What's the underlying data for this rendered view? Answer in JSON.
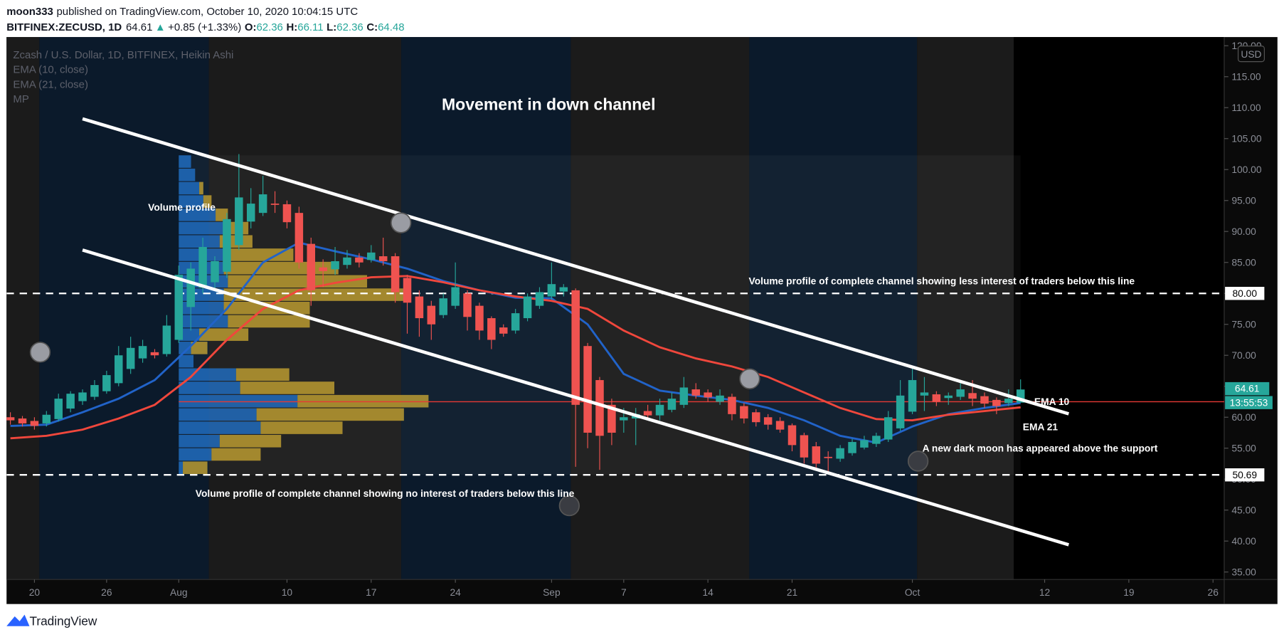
{
  "header": {
    "user": "moon333",
    "published": "published on TradingView.com, October 10, 2020 10:04:15 UTC",
    "symbol": "BITFINEX:ZECUSD, 1D",
    "last": 64.61,
    "arrow": "▲",
    "change": "+0.85 (+1.33%)",
    "ohlc": [
      {
        "label": "O:",
        "value": 62.36
      },
      {
        "label": "H:",
        "value": 66.11
      },
      {
        "label": "L:",
        "value": 62.36
      },
      {
        "label": "C:",
        "value": 64.48
      }
    ]
  },
  "chart_data": {
    "type": "candlestick",
    "title": "Zcash / U.S. Dollar, 1D, BITFINEX, Heikin Ashi",
    "currency": "USD",
    "x": [
      "2020-07-18",
      "2020-07-19",
      "2020-07-20",
      "2020-07-21",
      "2020-07-22",
      "2020-07-23",
      "2020-07-24",
      "2020-07-25",
      "2020-07-26",
      "2020-07-27",
      "2020-07-28",
      "2020-07-29",
      "2020-07-30",
      "2020-07-31",
      "2020-08-01",
      "2020-08-02",
      "2020-08-03",
      "2020-08-04",
      "2020-08-05",
      "2020-08-06",
      "2020-08-07",
      "2020-08-08",
      "2020-08-09",
      "2020-08-10",
      "2020-08-11",
      "2020-08-12",
      "2020-08-13",
      "2020-08-14",
      "2020-08-15",
      "2020-08-16",
      "2020-08-17",
      "2020-08-18",
      "2020-08-19",
      "2020-08-20",
      "2020-08-21",
      "2020-08-22",
      "2020-08-23",
      "2020-08-24",
      "2020-08-25",
      "2020-08-26",
      "2020-08-27",
      "2020-08-28",
      "2020-08-29",
      "2020-08-30",
      "2020-08-31",
      "2020-09-01",
      "2020-09-02",
      "2020-09-03",
      "2020-09-04",
      "2020-09-05",
      "2020-09-06",
      "2020-09-07",
      "2020-09-08",
      "2020-09-09",
      "2020-09-10",
      "2020-09-11",
      "2020-09-12",
      "2020-09-13",
      "2020-09-14",
      "2020-09-15",
      "2020-09-16",
      "2020-09-17",
      "2020-09-18",
      "2020-09-19",
      "2020-09-20",
      "2020-09-21",
      "2020-09-22",
      "2020-09-23",
      "2020-09-24",
      "2020-09-25",
      "2020-09-26",
      "2020-09-27",
      "2020-09-28",
      "2020-09-29",
      "2020-09-30",
      "2020-10-01",
      "2020-10-02",
      "2020-10-03",
      "2020-10-04",
      "2020-10-05",
      "2020-10-06",
      "2020-10-07",
      "2020-10-08",
      "2020-10-09",
      "2020-10-10"
    ],
    "open": [
      60.0,
      59.8,
      59.4,
      59.0,
      59.7,
      61.4,
      62.6,
      63.3,
      64.2,
      65.5,
      67.8,
      69.5,
      70.5,
      70.2,
      72.5,
      77.8,
      80.9,
      81.8,
      83.5,
      87.8,
      91.6,
      93.0,
      94.5,
      94.4,
      93.0,
      88.0,
      84.2,
      83.9,
      84.6,
      85.8,
      85.4,
      86.0,
      86.0,
      82.5,
      79.5,
      78.0,
      76.5,
      78.0,
      80.0,
      78.0,
      76.0,
      74.5,
      74.0,
      76.0,
      78.0,
      79.5,
      80.3,
      80.5,
      71.5,
      66.0,
      62.0,
      59.5,
      59.8,
      61.0,
      60.3,
      61.2,
      62.0,
      64.5,
      64.0,
      62.5,
      63.3,
      61.8,
      60.8,
      60.0,
      59.4,
      58.7,
      57.1,
      55.3,
      53.6,
      53.3,
      54.2,
      55.1,
      55.7,
      56.4,
      58.2,
      60.9,
      63.5,
      63.7,
      63.1,
      63.3,
      63.9,
      63.4,
      62.8,
      62.3,
      62.36
    ],
    "high": [
      60.8,
      60.2,
      60.0,
      61.0,
      63.8,
      64.2,
      64.5,
      66.0,
      67.5,
      71.5,
      73.0,
      72.5,
      71.0,
      76.5,
      84.5,
      85.0,
      89.0,
      86.0,
      93.0,
      102.5,
      97.0,
      99.0,
      96.5,
      95.0,
      94.0,
      89.0,
      85.5,
      87.5,
      87.0,
      86.5,
      87.8,
      89.0,
      86.5,
      83.0,
      80.5,
      78.8,
      80.0,
      85.0,
      80.5,
      78.5,
      76.3,
      75.0,
      77.5,
      80.0,
      81.0,
      85.0,
      81.5,
      80.8,
      72.0,
      66.5,
      63.0,
      61.5,
      61.5,
      62.0,
      63.0,
      64.0,
      66.5,
      65.5,
      64.5,
      64.5,
      63.8,
      62.3,
      61.3,
      60.5,
      60.0,
      59.0,
      57.5,
      56.0,
      54.5,
      55.5,
      56.5,
      57.0,
      57.5,
      61.0,
      66.0,
      68.0,
      66.5,
      64.2,
      64.0,
      65.5,
      66.0,
      64.0,
      63.2,
      64.5,
      66.11
    ],
    "low": [
      58.8,
      58.5,
      58.0,
      58.5,
      59.3,
      60.8,
      62.0,
      62.8,
      63.8,
      65.0,
      67.0,
      68.8,
      69.5,
      69.8,
      72.0,
      74.0,
      80.0,
      80.5,
      82.5,
      87.0,
      90.5,
      92.5,
      93.0,
      90.5,
      84.0,
      78.0,
      81.0,
      83.0,
      84.0,
      84.2,
      85.0,
      84.5,
      78.5,
      73.5,
      73.0,
      72.5,
      76.0,
      77.5,
      74.0,
      72.5,
      71.0,
      73.0,
      73.5,
      75.5,
      77.5,
      79.0,
      79.5,
      52.0,
      55.0,
      51.5,
      55.5,
      57.5,
      55.5,
      59.5,
      59.5,
      60.8,
      61.5,
      63.0,
      62.5,
      62.0,
      59.5,
      59.0,
      58.5,
      58.0,
      57.5,
      54.5,
      52.5,
      51.5,
      51.0,
      52.8,
      53.8,
      54.8,
      55.2,
      56.0,
      57.8,
      60.5,
      61.0,
      61.8,
      62.0,
      62.8,
      61.8,
      61.5,
      60.5,
      61.8,
      62.36
    ],
    "close": [
      59.5,
      59.0,
      58.6,
      60.4,
      63.0,
      63.8,
      64.0,
      65.2,
      66.8,
      70.0,
      71.2,
      71.5,
      70.0,
      74.8,
      83.0,
      84.0,
      87.5,
      85.2,
      92.0,
      95.5,
      94.5,
      96.0,
      94.3,
      91.5,
      85.0,
      80.5,
      83.6,
      85.2,
      85.8,
      85.0,
      86.6,
      85.2,
      80.2,
      78.5,
      76.0,
      75.0,
      79.2,
      81.0,
      76.2,
      74.0,
      72.5,
      73.5,
      76.8,
      79.5,
      80.2,
      81.5,
      81.0,
      62.0,
      57.5,
      57.0,
      57.5,
      60.0,
      60.5,
      60.3,
      62.0,
      63.0,
      64.8,
      63.5,
      63.2,
      63.5,
      60.5,
      59.8,
      59.2,
      58.8,
      58.0,
      55.5,
      53.5,
      52.5,
      53.4,
      55.0,
      56.0,
      56.3,
      57.0,
      60.0,
      63.5,
      66.0,
      64.0,
      62.5,
      63.5,
      64.5,
      63.0,
      62.2,
      61.8,
      63.0,
      64.48
    ],
    "up_color": "#26a69a",
    "down_color": "#ef5350",
    "series": [
      {
        "name": "EMA (10, close)",
        "color": "#2163c9",
        "x": [
          "2020-07-18",
          "2020-07-21",
          "2020-07-24",
          "2020-07-27",
          "2020-07-30",
          "2020-08-02",
          "2020-08-05",
          "2020-08-08",
          "2020-08-11",
          "2020-08-14",
          "2020-08-17",
          "2020-08-20",
          "2020-08-23",
          "2020-08-26",
          "2020-08-29",
          "2020-09-01",
          "2020-09-04",
          "2020-09-07",
          "2020-09-10",
          "2020-09-13",
          "2020-09-16",
          "2020-09-19",
          "2020-09-22",
          "2020-09-25",
          "2020-09-28",
          "2020-10-01",
          "2020-10-04",
          "2020-10-07",
          "2020-10-10"
        ],
        "values": [
          58.6,
          58.8,
          60.8,
          63.0,
          66.0,
          71.5,
          77.5,
          85.0,
          88.2,
          86.8,
          85.5,
          84.0,
          82.0,
          80.5,
          79.3,
          79.2,
          75.0,
          67.0,
          64.3,
          63.5,
          62.8,
          61.5,
          59.5,
          57.0,
          55.9,
          58.5,
          60.5,
          61.5,
          62.3
        ]
      },
      {
        "name": "EMA (21, close)",
        "color": "#f0473c",
        "x": [
          "2020-07-18",
          "2020-07-21",
          "2020-07-24",
          "2020-07-27",
          "2020-07-30",
          "2020-08-02",
          "2020-08-05",
          "2020-08-08",
          "2020-08-11",
          "2020-08-14",
          "2020-08-17",
          "2020-08-20",
          "2020-08-23",
          "2020-08-26",
          "2020-08-29",
          "2020-09-01",
          "2020-09-04",
          "2020-09-07",
          "2020-09-10",
          "2020-09-13",
          "2020-09-16",
          "2020-09-19",
          "2020-09-22",
          "2020-09-25",
          "2020-09-28",
          "2020-10-01",
          "2020-10-04",
          "2020-10-07",
          "2020-10-10"
        ],
        "values": [
          56.6,
          57.0,
          58.0,
          59.8,
          62.0,
          66.5,
          72.5,
          77.5,
          80.5,
          81.7,
          82.6,
          82.8,
          81.8,
          80.5,
          79.5,
          78.8,
          77.5,
          74.0,
          71.3,
          69.5,
          68.2,
          66.5,
          64.0,
          61.5,
          59.7,
          59.5,
          60.4,
          61.0,
          61.6
        ]
      }
    ],
    "volume_profile": {
      "name": "MP",
      "x_start": "2020-08-01",
      "x_end": "2020-10-10",
      "up_color": "rgba(33,118,210,0.75)",
      "down_color": "rgba(214,176,51,0.72)",
      "poc": 62.5,
      "poc_color": "#e53935",
      "bins": [
        50.7,
        52.85,
        55.0,
        57.15,
        59.3,
        61.45,
        63.6,
        65.75,
        67.9,
        70.05,
        72.2,
        74.35,
        76.5,
        78.65,
        80.8,
        82.95,
        85.1,
        87.25,
        89.4,
        91.55,
        93.7,
        95.85,
        98.0,
        100.15,
        102.3
      ],
      "up": [
        5,
        40,
        50,
        100,
        95,
        145,
        75,
        70,
        18,
        15,
        25,
        60,
        55,
        55,
        60,
        55,
        55,
        50,
        55,
        45,
        30,
        25,
        20,
        15
      ],
      "down": [
        30,
        60,
        75,
        100,
        180,
        160,
        115,
        65,
        0,
        20,
        60,
        100,
        105,
        220,
        170,
        140,
        85,
        40,
        30,
        15,
        10,
        5,
        0,
        0
      ]
    },
    "hlines": [
      {
        "value": 80,
        "label": "80.00"
      },
      {
        "value": 50.69,
        "label": "50.69"
      }
    ],
    "last_price": 64.61,
    "countdown": "13:55:53",
    "trendlines": [
      {
        "x": [
          "2020-07-24",
          "2020-10-14"
        ],
        "y": [
          108.2,
          60.55
        ]
      },
      {
        "x": [
          "2020-07-24",
          "2020-10-14"
        ],
        "y": [
          87.0,
          39.4
        ]
      }
    ],
    "moons": {
      "x": [
        "2020-07-20",
        "2020-08-19",
        "2020-09-02",
        "2020-09-17",
        "2020-10-01"
      ],
      "y": [
        70.5,
        91.4,
        45.7,
        66.2,
        52.9
      ],
      "colors": [
        "#9a9ca3",
        "#9a9ca3",
        "#3a3c42",
        "#9a9ca3",
        "#3a3c42"
      ]
    },
    "annotations": [
      "Movement in down channel",
      "Volume profile",
      "Volume profile of complete channel showing less interest of traders below this line",
      "Volume profile of complete channel showing no interest of traders below this line",
      "A new dark moon has appeared above the support",
      "EMA 10",
      "EMA 21"
    ],
    "xlim": [
      "2020-07-17",
      "2020-10-27"
    ],
    "xticks": [
      {
        "value": "2020-07-20",
        "label": "20"
      },
      {
        "value": "2020-07-26",
        "label": "26"
      },
      {
        "value": "2020-08-01",
        "label": "Aug"
      },
      {
        "value": "2020-08-10",
        "label": "10"
      },
      {
        "value": "2020-08-17",
        "label": "17"
      },
      {
        "value": "2020-08-24",
        "label": "24"
      },
      {
        "value": "2020-09-01",
        "label": "Sep"
      },
      {
        "value": "2020-09-07",
        "label": "7"
      },
      {
        "value": "2020-09-14",
        "label": "14"
      },
      {
        "value": "2020-09-21",
        "label": "21"
      },
      {
        "value": "2020-10-01",
        "label": "Oct"
      },
      {
        "value": "2020-10-12",
        "label": "12"
      },
      {
        "value": "2020-10-19",
        "label": "19"
      },
      {
        "value": "2020-10-26",
        "label": "26"
      }
    ],
    "ylim": [
      33.8,
      121.4
    ],
    "yticks": [
      {
        "value": 35,
        "label": "35.00"
      },
      {
        "value": 40,
        "label": "40.00"
      },
      {
        "value": 45,
        "label": "45.00"
      },
      {
        "value": 50,
        "label": "50.00"
      },
      {
        "value": 55,
        "label": "55.00"
      },
      {
        "value": 60,
        "label": "60.00"
      },
      {
        "value": 65,
        "label": "65.00"
      },
      {
        "value": 70,
        "label": "70.00"
      },
      {
        "value": 75,
        "label": "75.00"
      },
      {
        "value": 80,
        "label": "80.00"
      },
      {
        "value": 85,
        "label": "85.00"
      },
      {
        "value": 90,
        "label": "90.00"
      },
      {
        "value": 95,
        "label": "95.00"
      },
      {
        "value": 100,
        "label": "100.00"
      },
      {
        "value": 105,
        "label": "105.00"
      },
      {
        "value": 110,
        "label": "110.00"
      },
      {
        "value": 115,
        "label": "115.00"
      },
      {
        "value": 120,
        "label": "120.00"
      }
    ],
    "grid": false
  },
  "footer": {
    "brand": "TradingView"
  }
}
